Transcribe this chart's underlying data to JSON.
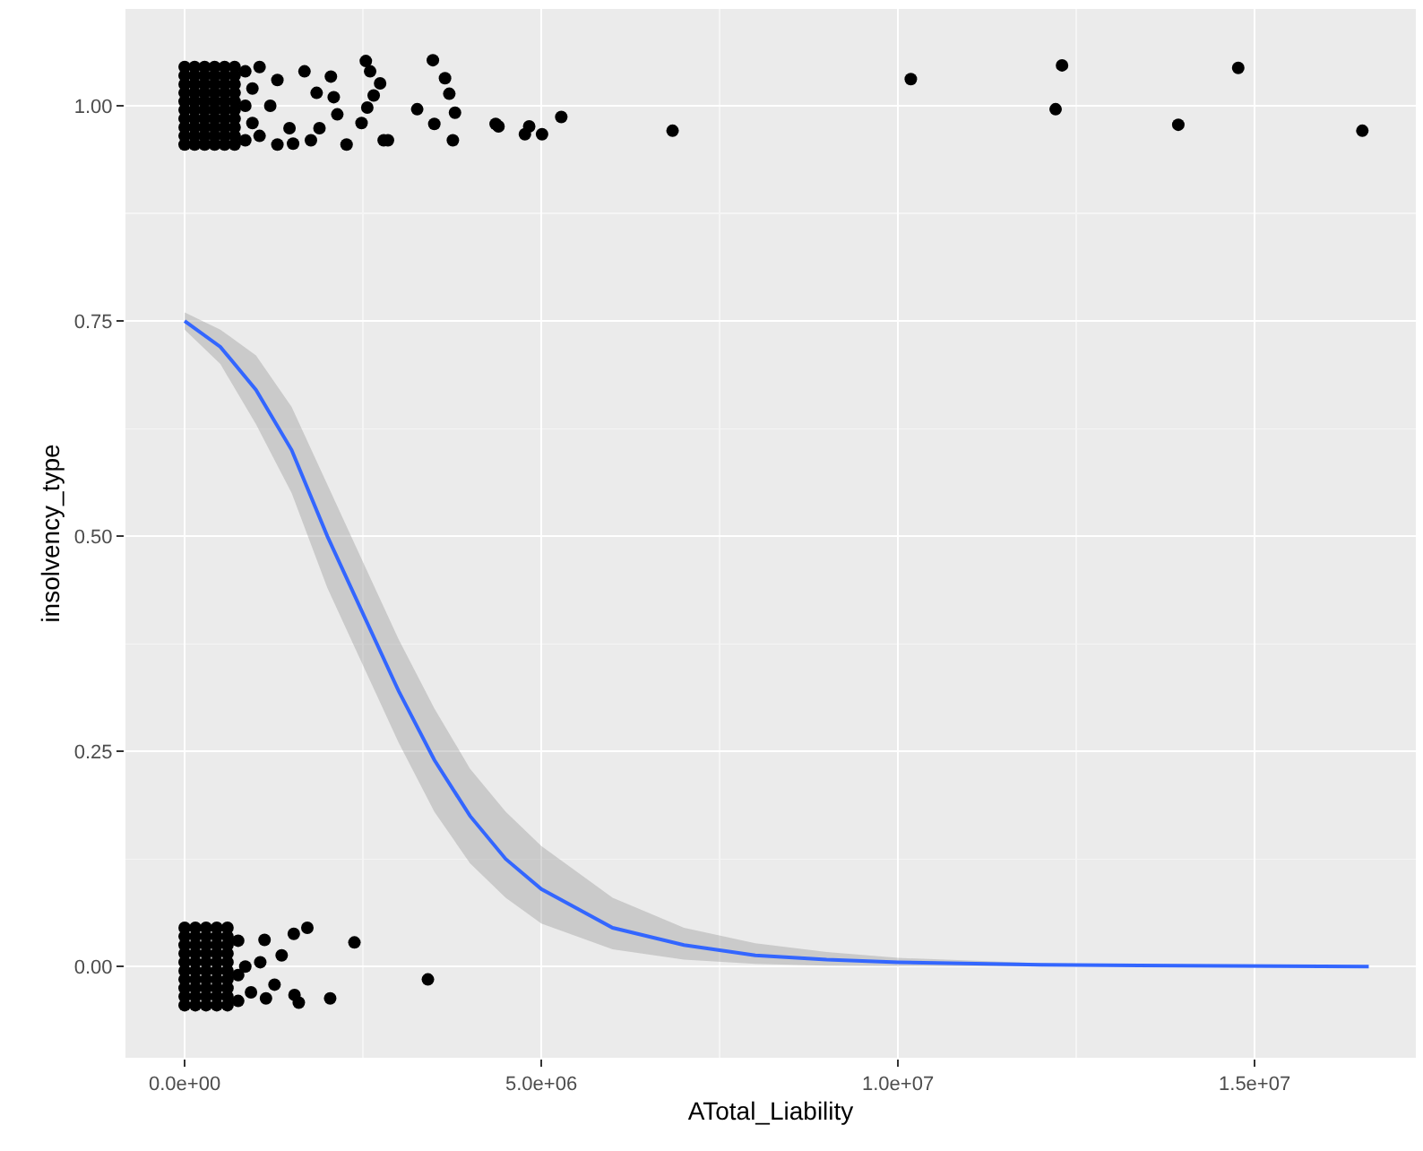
{
  "chart_data": {
    "type": "scatter",
    "xlabel": "ATotal_Liability",
    "ylabel": "insolvency_type",
    "xlim": [
      -830000,
      17260000
    ],
    "ylim": [
      -0.106,
      1.1125
    ],
    "xticks": [
      {
        "value": 0,
        "label": "0.0e+00"
      },
      {
        "value": 5000000,
        "label": "5.0e+06"
      },
      {
        "value": 10000000,
        "label": "1.0e+07"
      },
      {
        "value": 15000000,
        "label": "1.5e+07"
      }
    ],
    "yticks": [
      {
        "value": 0,
        "label": "0.00"
      },
      {
        "value": 0.25,
        "label": "0.25"
      },
      {
        "value": 0.5,
        "label": "0.50"
      },
      {
        "value": 0.75,
        "label": "0.75"
      },
      {
        "value": 1,
        "label": "1.00"
      }
    ],
    "grid": true,
    "marker": "circle",
    "series": [
      {
        "color": "#000000",
        "x": [
          0,
          0,
          0,
          0,
          0,
          0,
          0,
          0,
          0,
          0,
          140000,
          140000,
          140000,
          140000,
          140000,
          140000,
          140000,
          140000,
          140000,
          140000,
          280000,
          280000,
          280000,
          280000,
          280000,
          280000,
          280000,
          280000,
          280000,
          280000,
          420000,
          420000,
          420000,
          420000,
          420000,
          420000,
          420000,
          420000,
          420000,
          420000,
          560000,
          560000,
          560000,
          560000,
          560000,
          560000,
          560000,
          560000,
          560000,
          560000,
          700000,
          700000,
          700000,
          700000,
          700000,
          700000,
          700000,
          700000,
          700000,
          700000,
          850000,
          850000,
          850000,
          950000,
          950000,
          1050000,
          1050000,
          1200000,
          1300000,
          1300000,
          2540000,
          2600000,
          3480000,
          3650000,
          3710000,
          3790000,
          3260000,
          3500000,
          3760000,
          4360000,
          4400000,
          4770000,
          4830000,
          5010000,
          5280000,
          6840000,
          2790000,
          2850000,
          2740000,
          2650000,
          2560000,
          2480000,
          2050000,
          2090000,
          2140000,
          2270000,
          1680000,
          1850000,
          1890000,
          1770000,
          1470000,
          1520000,
          10180000,
          12300000,
          12210000,
          13930000,
          14770000,
          16510000,
          0,
          0,
          0,
          0,
          0,
          0,
          0,
          0,
          0,
          0,
          150000,
          150000,
          150000,
          150000,
          150000,
          150000,
          150000,
          150000,
          150000,
          150000,
          300000,
          300000,
          300000,
          300000,
          300000,
          300000,
          300000,
          300000,
          300000,
          300000,
          450000,
          450000,
          450000,
          450000,
          450000,
          450000,
          450000,
          450000,
          450000,
          450000,
          600000,
          600000,
          600000,
          600000,
          600000,
          600000,
          600000,
          600000,
          600000,
          600000,
          750000,
          750000,
          750000,
          850000,
          1120000,
          1530000,
          1720000,
          2380000,
          1360000,
          3410000,
          1260000,
          1540000,
          1600000,
          2040000,
          1140000,
          1060000,
          930000
        ],
        "values": [
          0.955,
          0.965,
          0.975,
          0.985,
          0.995,
          1.005,
          1.015,
          1.025,
          1.035,
          1.045,
          0.955,
          0.965,
          0.975,
          0.985,
          0.995,
          1.005,
          1.015,
          1.025,
          1.035,
          1.045,
          0.955,
          0.965,
          0.975,
          0.985,
          0.995,
          1.005,
          1.015,
          1.025,
          1.035,
          1.045,
          0.955,
          0.965,
          0.975,
          0.985,
          0.995,
          1.005,
          1.015,
          1.025,
          1.035,
          1.045,
          0.955,
          0.965,
          0.975,
          0.985,
          0.995,
          1.005,
          1.015,
          1.025,
          1.035,
          1.045,
          0.955,
          0.965,
          0.975,
          0.985,
          0.995,
          1.005,
          1.015,
          1.025,
          1.035,
          1.045,
          1.04,
          1.0,
          0.96,
          1.02,
          0.98,
          1.045,
          0.965,
          1.0,
          0.955,
          1.03,
          1.052,
          1.04,
          1.053,
          1.032,
          1.014,
          0.992,
          0.996,
          0.979,
          0.96,
          0.979,
          0.976,
          0.967,
          0.976,
          0.967,
          0.987,
          0.971,
          0.96,
          0.96,
          1.026,
          1.012,
          0.998,
          0.98,
          1.034,
          1.01,
          0.99,
          0.955,
          1.04,
          1.015,
          0.974,
          0.96,
          0.974,
          0.956,
          1.031,
          1.047,
          0.996,
          0.978,
          1.044,
          0.971,
          -0.045,
          -0.035,
          -0.025,
          -0.015,
          -0.005,
          0.005,
          0.015,
          0.025,
          0.035,
          0.045,
          -0.045,
          -0.035,
          -0.025,
          -0.015,
          -0.005,
          0.005,
          0.015,
          0.025,
          0.035,
          0.045,
          -0.045,
          -0.035,
          -0.025,
          -0.015,
          -0.005,
          0.005,
          0.015,
          0.025,
          0.035,
          0.045,
          -0.045,
          -0.035,
          -0.025,
          -0.015,
          -0.005,
          0.005,
          0.015,
          0.025,
          0.035,
          0.045,
          -0.045,
          -0.035,
          -0.025,
          -0.015,
          -0.005,
          0.005,
          0.015,
          0.025,
          0.035,
          0.045,
          0.03,
          -0.01,
          -0.04,
          0.0,
          0.031,
          0.038,
          0.045,
          0.028,
          0.013,
          -0.015,
          -0.021,
          -0.033,
          -0.042,
          -0.037,
          -0.037,
          0.005,
          -0.03
        ]
      },
      {
        "type": "line",
        "color": "#3366ff",
        "marker": "none",
        "x": [
          0,
          500000,
          1000000,
          1500000,
          2000000,
          2500000,
          3000000,
          3500000,
          4000000,
          4500000,
          5000000,
          6000000,
          7000000,
          8000000,
          9000000,
          10000000,
          12000000,
          14000000,
          16600000
        ],
        "values": [
          0.75,
          0.72,
          0.67,
          0.6,
          0.5,
          0.41,
          0.32,
          0.24,
          0.175,
          0.125,
          0.09,
          0.045,
          0.025,
          0.013,
          0.008,
          0.005,
          0.002,
          0.001,
          0.0
        ],
        "lower": [
          0.74,
          0.7,
          0.63,
          0.55,
          0.44,
          0.35,
          0.26,
          0.18,
          0.12,
          0.08,
          0.05,
          0.02,
          0.008,
          0.003,
          0.001,
          0.0005,
          0,
          0,
          0
        ],
        "upper": [
          0.76,
          0.74,
          0.71,
          0.65,
          0.56,
          0.47,
          0.38,
          0.3,
          0.23,
          0.18,
          0.14,
          0.08,
          0.045,
          0.027,
          0.017,
          0.01,
          0.004,
          0.002,
          0.0005
        ]
      }
    ]
  }
}
